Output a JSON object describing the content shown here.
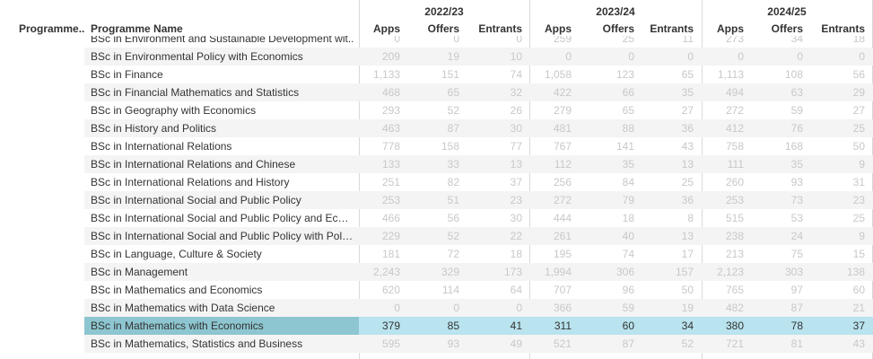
{
  "header": {
    "prog_code_label": "Programme..",
    "prog_name_label": "Programme Name",
    "years": [
      "2022/23",
      "2023/24",
      "2024/25"
    ],
    "metrics": [
      "Apps",
      "Offers",
      "Entrants"
    ]
  },
  "rows": [
    {
      "name": "BSc in Environment and Sustainable Development wit..",
      "v": [
        "0",
        "0",
        "0",
        "259",
        "25",
        "11",
        "273",
        "34",
        "18"
      ]
    },
    {
      "name": "BSc in Environmental Policy with Economics",
      "v": [
        "209",
        "19",
        "10",
        "0",
        "0",
        "0",
        "0",
        "0",
        "0"
      ]
    },
    {
      "name": "BSc in Finance",
      "v": [
        "1,133",
        "151",
        "74",
        "1,058",
        "123",
        "65",
        "1,113",
        "108",
        "56"
      ]
    },
    {
      "name": "BSc in Financial Mathematics and Statistics",
      "v": [
        "468",
        "65",
        "32",
        "422",
        "66",
        "35",
        "494",
        "63",
        "29"
      ]
    },
    {
      "name": "BSc in Geography with Economics",
      "v": [
        "293",
        "52",
        "26",
        "279",
        "65",
        "27",
        "272",
        "59",
        "27"
      ]
    },
    {
      "name": "BSc in History and Politics",
      "v": [
        "463",
        "87",
        "30",
        "481",
        "88",
        "36",
        "412",
        "76",
        "25"
      ]
    },
    {
      "name": "BSc in International Relations",
      "v": [
        "778",
        "158",
        "77",
        "767",
        "141",
        "43",
        "758",
        "168",
        "50"
      ]
    },
    {
      "name": "BSc in International Relations and Chinese",
      "v": [
        "133",
        "33",
        "13",
        "112",
        "35",
        "13",
        "111",
        "35",
        "9"
      ]
    },
    {
      "name": "BSc in International Relations and History",
      "v": [
        "251",
        "82",
        "37",
        "256",
        "84",
        "25",
        "260",
        "93",
        "31"
      ]
    },
    {
      "name": "BSc in International Social and Public Policy",
      "v": [
        "253",
        "51",
        "23",
        "272",
        "79",
        "36",
        "253",
        "73",
        "23"
      ]
    },
    {
      "name": "BSc in International Social and Public Policy and Econ..",
      "v": [
        "466",
        "56",
        "30",
        "444",
        "18",
        "8",
        "515",
        "53",
        "25"
      ]
    },
    {
      "name": "BSc in International Social and Public Policy with Politi..",
      "v": [
        "229",
        "52",
        "22",
        "261",
        "40",
        "13",
        "238",
        "24",
        "9"
      ]
    },
    {
      "name": "BSc in Language, Culture & Society",
      "v": [
        "181",
        "72",
        "18",
        "195",
        "74",
        "17",
        "213",
        "75",
        "15"
      ]
    },
    {
      "name": "BSc in Management",
      "v": [
        "2,243",
        "329",
        "173",
        "1,994",
        "306",
        "157",
        "2,123",
        "303",
        "138"
      ]
    },
    {
      "name": "BSc in Mathematics and Economics",
      "v": [
        "620",
        "114",
        "64",
        "707",
        "96",
        "50",
        "765",
        "97",
        "60"
      ]
    },
    {
      "name": "BSc in Mathematics with Data Science",
      "v": [
        "0",
        "0",
        "0",
        "366",
        "59",
        "19",
        "482",
        "87",
        "21"
      ]
    },
    {
      "name": "BSc in Mathematics with Economics",
      "v": [
        "379",
        "85",
        "41",
        "311",
        "60",
        "34",
        "380",
        "78",
        "37"
      ],
      "selected": true
    },
    {
      "name": "BSc in Mathematics, Statistics and Business",
      "v": [
        "595",
        "93",
        "49",
        "521",
        "87",
        "52",
        "721",
        "81",
        "43"
      ]
    }
  ]
}
